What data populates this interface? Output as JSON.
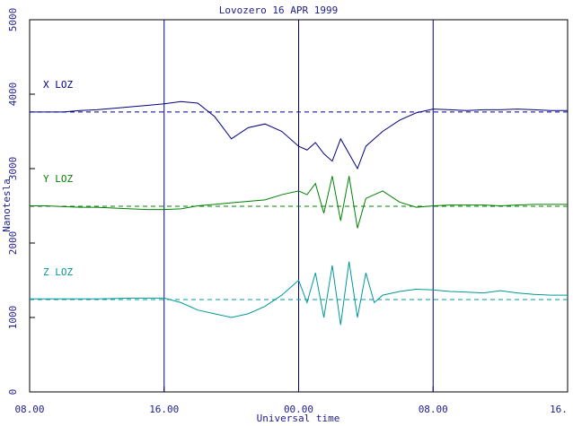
{
  "chart_data": {
    "type": "line",
    "title": "Lovozero 16 APR 1999",
    "x_label": "Universal time",
    "y_label": "Nanotesla",
    "xlim": [
      0,
      32
    ],
    "xticks": [
      {
        "value": 0,
        "label": "08.00"
      },
      {
        "value": 8,
        "label": "16.00"
      },
      {
        "value": 16,
        "label": "00.00"
      },
      {
        "value": 24,
        "label": "08.00"
      },
      {
        "value": 32,
        "label": "16."
      }
    ],
    "ylim": [
      0,
      5000
    ],
    "yticks": [
      0,
      1000,
      2000,
      3000,
      4000,
      5000
    ],
    "vertical_lines": [
      8,
      16,
      24
    ],
    "x": [
      0,
      1,
      2,
      3,
      4,
      5,
      6,
      7,
      8,
      9,
      10,
      11,
      12,
      13,
      14,
      15,
      16,
      16.5,
      17,
      17.5,
      18,
      18.5,
      19,
      19.5,
      20,
      20.5,
      21,
      22,
      23,
      24,
      25,
      26,
      27,
      28,
      29,
      30,
      31,
      32
    ],
    "series": [
      {
        "name": "X LOZ",
        "color": "#000080",
        "baseline": 3760,
        "values": [
          3760,
          3760,
          3760,
          3780,
          3790,
          3810,
          3830,
          3850,
          3870,
          3900,
          3880,
          3700,
          3400,
          3550,
          3600,
          3500,
          3300,
          3250,
          3350,
          3200,
          3100,
          3400,
          3200,
          3000,
          3300,
          3400,
          3500,
          3650,
          3750,
          3800,
          3790,
          3780,
          3790,
          3790,
          3800,
          3790,
          3780,
          3780
        ]
      },
      {
        "name": "Y LOZ",
        "color": "#008000",
        "baseline": 2494,
        "values": [
          2500,
          2500,
          2490,
          2480,
          2480,
          2470,
          2460,
          2450,
          2450,
          2460,
          2500,
          2520,
          2540,
          2560,
          2580,
          2650,
          2700,
          2650,
          2800,
          2400,
          2900,
          2300,
          2900,
          2200,
          2600,
          2650,
          2700,
          2550,
          2480,
          2500,
          2510,
          2510,
          2510,
          2500,
          2510,
          2520,
          2520,
          2520
        ]
      },
      {
        "name": "Z LOZ",
        "color": "#009999",
        "baseline": 1241,
        "values": [
          1250,
          1250,
          1250,
          1250,
          1250,
          1255,
          1260,
          1260,
          1260,
          1200,
          1100,
          1050,
          1000,
          1050,
          1150,
          1300,
          1500,
          1200,
          1600,
          1000,
          1700,
          900,
          1750,
          1000,
          1600,
          1200,
          1300,
          1350,
          1380,
          1370,
          1350,
          1340,
          1330,
          1360,
          1330,
          1310,
          1300,
          1300
        ]
      }
    ]
  }
}
